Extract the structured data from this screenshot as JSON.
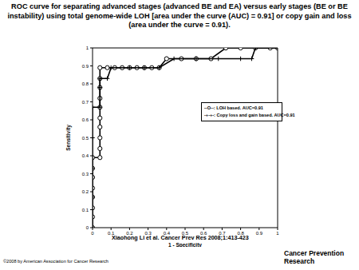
{
  "chart_data": {
    "type": "line",
    "title": "ROC curve for separating advanced stages (advanced BE and EA) versus early stages (BE or BE instability) using total genome-wide LOH [area under the curve (AUC) = 0.91] or copy gain and loss (area under the curve = 0.91).",
    "x_label": "1 - Specificity",
    "y_label": "Sensitivity",
    "xlim": [
      0,
      1
    ],
    "ylim": [
      0,
      1
    ],
    "xticks": [
      0,
      0.1,
      0.2,
      0.3,
      0.4,
      0.5,
      0.6,
      0.7,
      0.8,
      0.9,
      1
    ],
    "yticks": [
      0,
      0.1,
      0.2,
      0.3,
      0.4,
      0.5,
      0.6,
      0.7,
      0.8,
      0.9,
      1
    ],
    "legend": "upper right",
    "series": [
      {
        "name": "--O--: LOH based.  AUC=0.91",
        "color": "#000000",
        "marker": "circle",
        "line_style": "solid",
        "x": [
          0,
          0,
          0,
          0,
          0,
          0,
          0,
          0,
          0.04,
          0.04,
          0.04,
          0.04,
          0.04,
          0.04,
          0.04,
          0.04,
          0.04,
          0.04,
          0.08,
          0.12,
          0.16,
          0.2,
          0.24,
          0.28,
          0.32,
          0.36,
          0.4,
          0.48,
          0.56,
          0.64,
          0.72,
          0.8,
          0.88,
          0.96,
          1
        ],
        "values": [
          0,
          0.06,
          0.11,
          0.17,
          0.22,
          0.28,
          0.33,
          0.39,
          0.39,
          0.44,
          0.5,
          0.56,
          0.61,
          0.67,
          0.72,
          0.78,
          0.83,
          0.89,
          0.89,
          0.89,
          0.89,
          0.89,
          0.89,
          0.89,
          0.89,
          0.89,
          0.94,
          0.94,
          0.94,
          0.94,
          1,
          1,
          1,
          1,
          1
        ]
      },
      {
        "name": "-+-+-: Copy loss and gain based.  AUC=0.91",
        "color": "#000000",
        "marker": "plus",
        "line_style": "solid",
        "x": [
          0,
          0,
          0,
          0,
          0,
          0.04,
          0.04,
          0.04,
          0.08,
          0.1,
          0.2,
          0.28,
          0.36,
          0.44,
          0.56,
          0.68,
          0.8,
          0.86,
          0.88,
          1
        ],
        "values": [
          0,
          0.17,
          0.33,
          0.5,
          0.67,
          0.67,
          0.78,
          0.83,
          0.83,
          0.89,
          0.89,
          0.89,
          0.89,
          0.94,
          0.94,
          0.94,
          0.94,
          0.94,
          1,
          1
        ]
      }
    ],
    "annotations": [
      "Xiaohong Li et al. Cancer Prev Res 2008;1:413-423",
      "©2008 by American Association for Cancer Research",
      "Cancer Prevention Research"
    ]
  }
}
